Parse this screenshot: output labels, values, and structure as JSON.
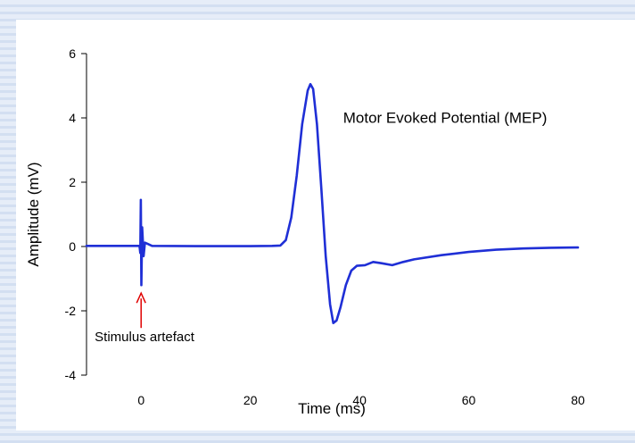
{
  "chart_data": {
    "type": "line",
    "title": "",
    "xlabel": "Time (ms)",
    "ylabel": "Amplitude (mV)",
    "xlim": [
      -10,
      80
    ],
    "ylim": [
      -4,
      6
    ],
    "xticks": [
      0,
      20,
      40,
      60,
      80
    ],
    "yticks": [
      -4,
      -2,
      0,
      2,
      4,
      6
    ],
    "grid": false,
    "line_color": "#1f2fd6",
    "arrow_color": "#e00000",
    "series": [
      {
        "values": [
          [
            -10,
            0.02
          ],
          [
            -2,
            0.02
          ],
          [
            -0.3,
            0.02
          ],
          [
            -0.15,
            -0.2
          ],
          [
            -0.05,
            1.45
          ],
          [
            0.05,
            -1.2
          ],
          [
            0.2,
            0.6
          ],
          [
            0.45,
            -0.3
          ],
          [
            0.7,
            0.12
          ],
          [
            1.2,
            0.08
          ],
          [
            2,
            0.02
          ],
          [
            10,
            0.01
          ],
          [
            20,
            0.01
          ],
          [
            24,
            0.02
          ],
          [
            25.5,
            0.03
          ],
          [
            26.5,
            0.2
          ],
          [
            27.5,
            0.9
          ],
          [
            28.5,
            2.2
          ],
          [
            29.5,
            3.8
          ],
          [
            30.5,
            4.85
          ],
          [
            31,
            5.05
          ],
          [
            31.5,
            4.9
          ],
          [
            32.2,
            3.8
          ],
          [
            33,
            1.8
          ],
          [
            33.8,
            -0.3
          ],
          [
            34.6,
            -1.8
          ],
          [
            35.2,
            -2.38
          ],
          [
            35.8,
            -2.3
          ],
          [
            36.5,
            -1.9
          ],
          [
            37.5,
            -1.2
          ],
          [
            38.5,
            -0.75
          ],
          [
            39.5,
            -0.6
          ],
          [
            41,
            -0.58
          ],
          [
            42.5,
            -0.48
          ],
          [
            44,
            -0.52
          ],
          [
            46,
            -0.58
          ],
          [
            48,
            -0.48
          ],
          [
            50,
            -0.4
          ],
          [
            55,
            -0.27
          ],
          [
            60,
            -0.17
          ],
          [
            65,
            -0.1
          ],
          [
            70,
            -0.06
          ],
          [
            75,
            -0.04
          ],
          [
            80,
            -0.03
          ]
        ]
      }
    ],
    "annotations": [
      {
        "text": "Motor Evoked Potential (MEP)",
        "x": 37,
        "y": 3.85
      },
      {
        "text": "Stimulus artefact",
        "x": -8.5,
        "y": -2.95,
        "arrow_to": [
          0,
          -1.45
        ]
      }
    ]
  }
}
